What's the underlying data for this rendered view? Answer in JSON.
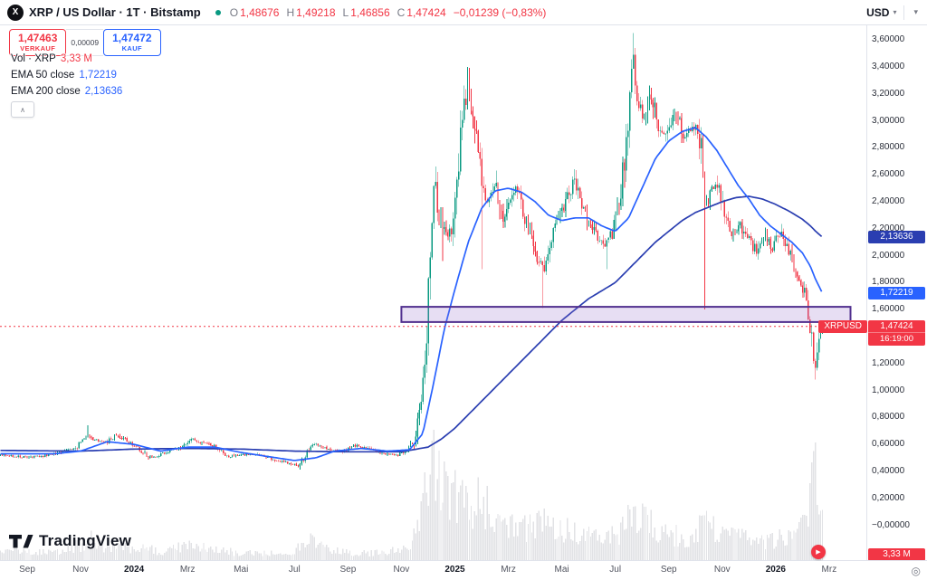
{
  "header": {
    "symbol_title": "XRP / US Dollar · 1T · Bitstamp",
    "ohlc": {
      "o_label": "O",
      "o": "1,48676",
      "h_label": "H",
      "h": "1,49218",
      "l_label": "L",
      "l": "1,46856",
      "c_label": "C",
      "c": "1,47424",
      "change": "−0,01239 (−0,83%)"
    },
    "currency": "USD"
  },
  "quote_panel": {
    "sell_price": "1,47463",
    "sell_label": "VERKAUF",
    "spread": "0,00009",
    "buy_price": "1,47472",
    "buy_label": "KAUF"
  },
  "legend": {
    "volume_label": "Vol · XRP",
    "volume_value": "3,33 M",
    "ema50_label": "EMA 50 close",
    "ema50_value": "1,72219",
    "ema200_label": "EMA 200 close",
    "ema200_value": "2,13636"
  },
  "badges": {
    "ema200": "2,13636",
    "ema50": "1,72219",
    "symbol": "XRPUSD",
    "last": "1,47424",
    "countdown": "16:19:00",
    "volume": "3,33 M"
  },
  "watermark": "TradingView",
  "icons": {
    "logo_letter": "X",
    "chevron_down": "▾",
    "collapse": "∧",
    "target": "◎",
    "marker": "▶"
  },
  "colors": {
    "up": "#089981",
    "down": "#f23645",
    "ema50": "#2962ff",
    "ema200": "#2a3eb1",
    "zone_fill": "rgba(146,106,200,0.22)",
    "zone_border": "#52318f",
    "volume": "rgba(88,94,110,0.18)"
  },
  "chart_data": {
    "type": "candlestick",
    "title": "XRP / US Dollar",
    "exchange": "Bitstamp",
    "timeframe": "1T",
    "ohlc_current": {
      "o": 1.48676,
      "h": 1.49218,
      "l": 1.46856,
      "c": 1.47424,
      "change": -0.01239,
      "change_pct": -0.83
    },
    "last_price": 1.47424,
    "ema50_value": 1.72219,
    "ema200_value": 2.13636,
    "volume_current": "3,33 M",
    "t_range": [
      -1.0,
      29.75
    ],
    "price_axis": {
      "min": -0.05,
      "max": 3.7,
      "ticks": [
        {
          "p": 3.6,
          "label": "3,60000"
        },
        {
          "p": 3.4,
          "label": "3,40000"
        },
        {
          "p": 3.2,
          "label": "3,20000"
        },
        {
          "p": 3.0,
          "label": "3,00000"
        },
        {
          "p": 2.8,
          "label": "2,80000"
        },
        {
          "p": 2.6,
          "label": "2,60000"
        },
        {
          "p": 2.4,
          "label": "2,40000"
        },
        {
          "p": 2.2,
          "label": "2,20000"
        },
        {
          "p": 2.0,
          "label": "2,00000"
        },
        {
          "p": 1.8,
          "label": "1,80000"
        },
        {
          "p": 1.6,
          "label": "1,60000"
        },
        {
          "p": 1.4,
          "label": "1,40000"
        },
        {
          "p": 1.2,
          "label": "1,20000"
        },
        {
          "p": 1.0,
          "label": "1,00000"
        },
        {
          "p": 0.8,
          "label": "0,80000"
        },
        {
          "p": 0.6,
          "label": "0,60000"
        },
        {
          "p": 0.4,
          "label": "0,40000"
        },
        {
          "p": 0.2,
          "label": "0,20000"
        },
        {
          "p": 0.0,
          "label": "−0,00000"
        }
      ]
    },
    "time_axis": {
      "ticks": [
        {
          "t": 0,
          "label": "Sep"
        },
        {
          "t": 2,
          "label": "Nov"
        },
        {
          "t": 4,
          "label": "2024",
          "bold": true
        },
        {
          "t": 6,
          "label": "Mrz"
        },
        {
          "t": 8,
          "label": "Mai"
        },
        {
          "t": 10,
          "label": "Jul"
        },
        {
          "t": 12,
          "label": "Sep"
        },
        {
          "t": 14,
          "label": "Nov"
        },
        {
          "t": 16,
          "label": "2025",
          "bold": true
        },
        {
          "t": 18,
          "label": "Mrz"
        },
        {
          "t": 20,
          "label": "Mai"
        },
        {
          "t": 22,
          "label": "Jul"
        },
        {
          "t": 24,
          "label": "Sep"
        },
        {
          "t": 26,
          "label": "Nov"
        },
        {
          "t": 28,
          "label": "2026",
          "bold": true
        },
        {
          "t": 30,
          "label": "Mrz"
        }
      ]
    },
    "close_path": [
      [
        -1.0,
        0.52
      ],
      [
        0,
        0.505
      ],
      [
        0.6,
        0.51
      ],
      [
        1.2,
        0.54
      ],
      [
        1.8,
        0.57
      ],
      [
        2.2,
        0.66
      ],
      [
        2.5,
        0.63
      ],
      [
        3.0,
        0.62
      ],
      [
        3.3,
        0.67
      ],
      [
        3.7,
        0.63
      ],
      [
        4.2,
        0.56
      ],
      [
        4.6,
        0.5
      ],
      [
        5.2,
        0.54
      ],
      [
        5.8,
        0.58
      ],
      [
        6.2,
        0.64
      ],
      [
        6.5,
        0.61
      ],
      [
        7.0,
        0.59
      ],
      [
        7.5,
        0.51
      ],
      [
        8.0,
        0.52
      ],
      [
        8.6,
        0.53
      ],
      [
        9.2,
        0.49
      ],
      [
        9.8,
        0.46
      ],
      [
        10.2,
        0.44
      ],
      [
        10.6,
        0.59
      ],
      [
        10.9,
        0.6
      ],
      [
        11.3,
        0.56
      ],
      [
        11.8,
        0.55
      ],
      [
        12.3,
        0.59
      ],
      [
        12.8,
        0.57
      ],
      [
        13.3,
        0.53
      ],
      [
        13.8,
        0.52
      ],
      [
        14.2,
        0.55
      ],
      [
        14.5,
        0.63
      ],
      [
        14.75,
        0.95
      ],
      [
        14.95,
        1.45
      ],
      [
        15.1,
        2.25
      ],
      [
        15.25,
        2.55
      ],
      [
        15.4,
        2.3
      ],
      [
        15.6,
        2.2
      ],
      [
        15.8,
        2.12
      ],
      [
        16.0,
        2.35
      ],
      [
        16.25,
        3.0
      ],
      [
        16.5,
        3.3
      ],
      [
        16.7,
        3.05
      ],
      [
        16.9,
        2.75
      ],
      [
        17.1,
        2.45
      ],
      [
        17.3,
        2.38
      ],
      [
        17.55,
        2.55
      ],
      [
        17.8,
        2.22
      ],
      [
        18.05,
        2.42
      ],
      [
        18.3,
        2.52
      ],
      [
        18.6,
        2.28
      ],
      [
        18.9,
        2.12
      ],
      [
        19.15,
        1.95
      ],
      [
        19.3,
        1.88
      ],
      [
        19.6,
        2.12
      ],
      [
        19.9,
        2.28
      ],
      [
        20.2,
        2.42
      ],
      [
        20.45,
        2.58
      ],
      [
        20.7,
        2.38
      ],
      [
        21.0,
        2.26
      ],
      [
        21.3,
        2.14
      ],
      [
        21.6,
        2.04
      ],
      [
        21.9,
        2.18
      ],
      [
        22.2,
        2.42
      ],
      [
        22.45,
        2.95
      ],
      [
        22.65,
        3.45
      ],
      [
        22.85,
        3.15
      ],
      [
        23.1,
        3.02
      ],
      [
        23.35,
        3.18
      ],
      [
        23.6,
        2.95
      ],
      [
        23.85,
        2.88
      ],
      [
        24.1,
        3.02
      ],
      [
        24.35,
        3.06
      ],
      [
        24.6,
        2.86
      ],
      [
        24.9,
        2.95
      ],
      [
        25.15,
        2.92
      ],
      [
        25.35,
        2.35
      ],
      [
        25.55,
        2.48
      ],
      [
        25.8,
        2.56
      ],
      [
        26.1,
        2.28
      ],
      [
        26.4,
        2.16
      ],
      [
        26.7,
        2.22
      ],
      [
        27.0,
        2.12
      ],
      [
        27.3,
        2.02
      ],
      [
        27.6,
        2.16
      ],
      [
        27.9,
        2.06
      ],
      [
        28.2,
        2.18
      ],
      [
        28.45,
        2.05
      ],
      [
        28.7,
        1.92
      ],
      [
        29.0,
        1.78
      ],
      [
        29.2,
        1.62
      ],
      [
        29.35,
        1.38
      ],
      [
        29.45,
        1.18
      ],
      [
        29.55,
        1.32
      ],
      [
        29.65,
        1.44
      ],
      [
        29.75,
        1.474
      ]
    ],
    "ema50_path": [
      [
        -1,
        0.53
      ],
      [
        1,
        0.53
      ],
      [
        2,
        0.55
      ],
      [
        3,
        0.62
      ],
      [
        4,
        0.6
      ],
      [
        5,
        0.55
      ],
      [
        6,
        0.58
      ],
      [
        7,
        0.58
      ],
      [
        8,
        0.54
      ],
      [
        9,
        0.51
      ],
      [
        10,
        0.48
      ],
      [
        10.8,
        0.5
      ],
      [
        11.5,
        0.55
      ],
      [
        12.5,
        0.57
      ],
      [
        13.5,
        0.55
      ],
      [
        14.3,
        0.56
      ],
      [
        14.8,
        0.68
      ],
      [
        15.2,
        1.05
      ],
      [
        15.6,
        1.45
      ],
      [
        16.0,
        1.75
      ],
      [
        16.5,
        2.1
      ],
      [
        17.0,
        2.35
      ],
      [
        17.5,
        2.48
      ],
      [
        18.0,
        2.5
      ],
      [
        18.5,
        2.47
      ],
      [
        19.0,
        2.4
      ],
      [
        19.5,
        2.3
      ],
      [
        20.0,
        2.26
      ],
      [
        20.5,
        2.28
      ],
      [
        21.0,
        2.28
      ],
      [
        21.5,
        2.22
      ],
      [
        22.0,
        2.18
      ],
      [
        22.5,
        2.28
      ],
      [
        23.0,
        2.5
      ],
      [
        23.5,
        2.72
      ],
      [
        24.0,
        2.85
      ],
      [
        24.5,
        2.92
      ],
      [
        25.0,
        2.95
      ],
      [
        25.4,
        2.88
      ],
      [
        25.8,
        2.78
      ],
      [
        26.2,
        2.65
      ],
      [
        26.6,
        2.52
      ],
      [
        27.0,
        2.42
      ],
      [
        27.4,
        2.3
      ],
      [
        27.8,
        2.22
      ],
      [
        28.2,
        2.16
      ],
      [
        28.6,
        2.1
      ],
      [
        29.0,
        2.02
      ],
      [
        29.3,
        1.92
      ],
      [
        29.5,
        1.82
      ],
      [
        29.75,
        1.722
      ]
    ],
    "ema200_path": [
      [
        -1,
        0.555
      ],
      [
        2,
        0.55
      ],
      [
        4,
        0.565
      ],
      [
        6,
        0.57
      ],
      [
        8,
        0.565
      ],
      [
        10,
        0.55
      ],
      [
        12,
        0.545
      ],
      [
        14,
        0.545
      ],
      [
        15,
        0.58
      ],
      [
        15.5,
        0.64
      ],
      [
        16,
        0.72
      ],
      [
        16.5,
        0.82
      ],
      [
        17,
        0.92
      ],
      [
        17.5,
        1.02
      ],
      [
        18,
        1.12
      ],
      [
        18.5,
        1.22
      ],
      [
        19,
        1.32
      ],
      [
        19.5,
        1.42
      ],
      [
        20,
        1.52
      ],
      [
        20.5,
        1.6
      ],
      [
        21,
        1.68
      ],
      [
        21.5,
        1.74
      ],
      [
        22,
        1.8
      ],
      [
        22.5,
        1.9
      ],
      [
        23,
        2.0
      ],
      [
        23.5,
        2.1
      ],
      [
        24,
        2.18
      ],
      [
        24.5,
        2.26
      ],
      [
        25,
        2.32
      ],
      [
        25.5,
        2.36
      ],
      [
        26,
        2.4
      ],
      [
        26.5,
        2.43
      ],
      [
        27,
        2.44
      ],
      [
        27.5,
        2.42
      ],
      [
        28,
        2.38
      ],
      [
        28.5,
        2.33
      ],
      [
        29,
        2.27
      ],
      [
        29.3,
        2.22
      ],
      [
        29.5,
        2.18
      ],
      [
        29.75,
        2.136
      ]
    ],
    "volume_profile": [
      [
        -1,
        0.1
      ],
      [
        0,
        0.08
      ],
      [
        1,
        0.09
      ],
      [
        2,
        0.16
      ],
      [
        2.4,
        0.22
      ],
      [
        3,
        0.12
      ],
      [
        4,
        0.14
      ],
      [
        5,
        0.1
      ],
      [
        6,
        0.16
      ],
      [
        7,
        0.12
      ],
      [
        8,
        0.08
      ],
      [
        9,
        0.07
      ],
      [
        10,
        0.1
      ],
      [
        10.7,
        0.22
      ],
      [
        11.5,
        0.1
      ],
      [
        12.5,
        0.08
      ],
      [
        13.5,
        0.09
      ],
      [
        14.3,
        0.12
      ],
      [
        14.8,
        0.55
      ],
      [
        15.1,
        0.95
      ],
      [
        15.4,
        0.85
      ],
      [
        15.8,
        0.65
      ],
      [
        16.2,
        0.6
      ],
      [
        16.6,
        0.55
      ],
      [
        17.0,
        0.6
      ],
      [
        17.4,
        0.45
      ],
      [
        18,
        0.38
      ],
      [
        18.5,
        0.32
      ],
      [
        19.2,
        0.4
      ],
      [
        19.8,
        0.28
      ],
      [
        20.4,
        0.3
      ],
      [
        21,
        0.25
      ],
      [
        21.6,
        0.22
      ],
      [
        22.2,
        0.3
      ],
      [
        22.7,
        0.48
      ],
      [
        23.2,
        0.38
      ],
      [
        23.8,
        0.28
      ],
      [
        24.4,
        0.25
      ],
      [
        25,
        0.22
      ],
      [
        25.35,
        0.55
      ],
      [
        25.8,
        0.3
      ],
      [
        26.4,
        0.25
      ],
      [
        27,
        0.22
      ],
      [
        27.6,
        0.2
      ],
      [
        28.2,
        0.22
      ],
      [
        28.8,
        0.25
      ],
      [
        29.2,
        0.4
      ],
      [
        29.45,
        0.9
      ],
      [
        29.6,
        0.6
      ],
      [
        29.75,
        0.45
      ]
    ],
    "wick_events": [
      {
        "t": 2.3,
        "high": 0.74
      },
      {
        "t": 16.5,
        "high": 3.4
      },
      {
        "t": 22.65,
        "high": 3.65
      },
      {
        "t": 15.55,
        "low": 1.96
      },
      {
        "t": 17.0,
        "low": 1.9
      },
      {
        "t": 19.25,
        "low": 1.61
      },
      {
        "t": 21.7,
        "low": 1.9
      },
      {
        "t": 25.35,
        "low": 1.6
      },
      {
        "t": 29.45,
        "low": 1.08
      }
    ],
    "zone": {
      "t_start": 14.0,
      "t_end": 30.8,
      "top": 1.62,
      "bottom": 1.507
    }
  }
}
